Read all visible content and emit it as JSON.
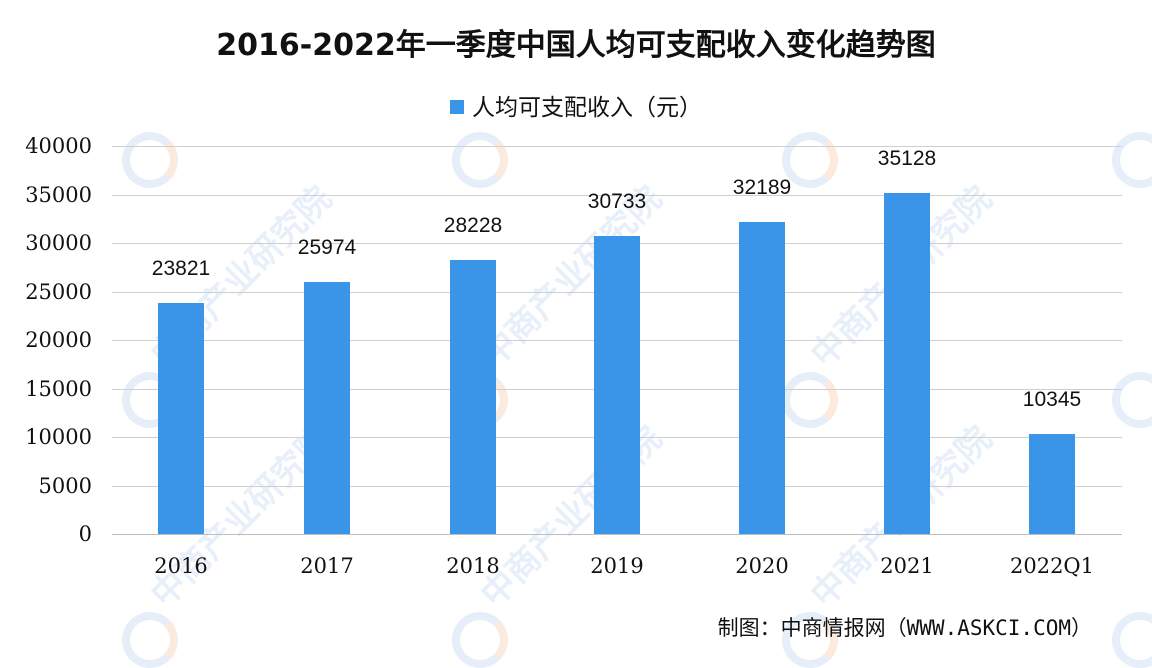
{
  "chart_data": {
    "type": "bar",
    "title": "2016-2022年一季度中国人均可支配收入变化趋势图",
    "categories": [
      "2016",
      "2017",
      "2018",
      "2019",
      "2020",
      "2021",
      "2022Q1"
    ],
    "series": [
      {
        "name": "人均可支配收入（元）",
        "values": [
          23821,
          25974,
          28228,
          30733,
          32189,
          35128,
          10345
        ],
        "color": "#3a95e8"
      }
    ],
    "xlabel": "",
    "ylabel": "",
    "ylim": [
      0,
      40000
    ],
    "yticks": [
      0,
      5000,
      10000,
      15000,
      20000,
      25000,
      30000,
      35000,
      40000
    ],
    "grid": true,
    "legend_position": "top",
    "data_labels": true
  },
  "title": "2016-2022年一季度中国人均可支配收入变化趋势图",
  "legend": {
    "label": "人均可支配收入（元）"
  },
  "y_axis": {
    "ticks": [
      "40000",
      "35000",
      "30000",
      "25000",
      "20000",
      "15000",
      "10000",
      "5000",
      "0"
    ]
  },
  "x_axis": {
    "labels": [
      "2016",
      "2017",
      "2018",
      "2019",
      "2020",
      "2021",
      "2022Q1"
    ]
  },
  "data_labels": [
    "23821",
    "25974",
    "28228",
    "30733",
    "32189",
    "35128",
    "10345"
  ],
  "source": "制图：中商情报网（WWW.ASKCI.COM）",
  "watermark": "中商产业研究院"
}
